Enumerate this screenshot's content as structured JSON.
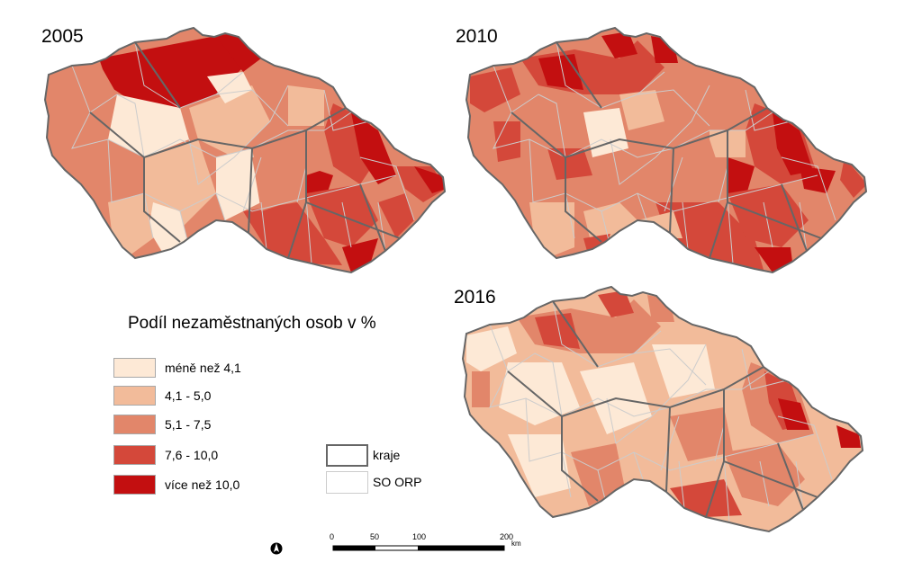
{
  "maps": [
    {
      "year": "2005"
    },
    {
      "year": "2010"
    },
    {
      "year": "2016"
    }
  ],
  "legend": {
    "title": "Podíl nezaměstnaných osob v %",
    "classes": [
      {
        "label": "méně než 4,1",
        "color": "#fde9d6"
      },
      {
        "label": "4,1 - 5,0",
        "color": "#f2bb9a"
      },
      {
        "label": "5,1 - 7,5",
        "color": "#e2866a"
      },
      {
        "label": "7,6 - 10,0",
        "color": "#d4483a"
      },
      {
        "label": "více než 10,0",
        "color": "#c30f10"
      }
    ]
  },
  "boundaries": [
    {
      "label": "kraje",
      "stroke": "#666666"
    },
    {
      "label": "SO ORP",
      "stroke": "#cccccc"
    }
  ],
  "scale_bar": {
    "ticks": [
      "0",
      "50",
      "100",
      "200"
    ],
    "unit": "km"
  },
  "north_arrow": {
    "icon": "north-arrow-icon"
  }
}
